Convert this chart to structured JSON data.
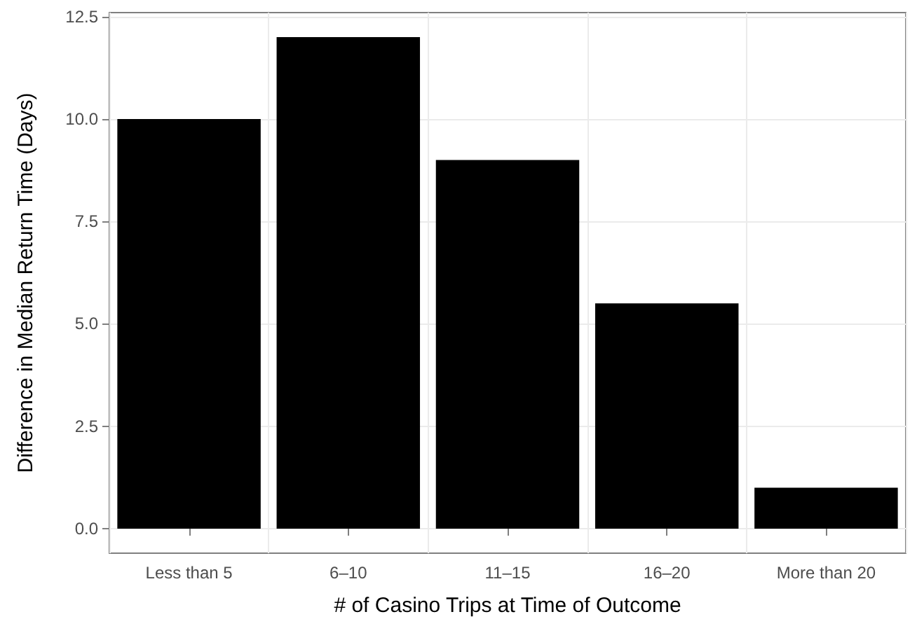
{
  "chart_data": {
    "type": "bar",
    "xlabel": "# of Casino Trips at Time of Outcome",
    "ylabel": "Difference in Median Return Time (Days)",
    "categories": [
      "Less than 5",
      "6–10",
      "11–15",
      "16–20",
      "More than 20"
    ],
    "values": [
      10,
      12,
      9,
      5.5,
      1
    ],
    "color": "#000000",
    "ylim": [
      -0.6,
      12.6
    ],
    "yticks": [
      {
        "value": 0,
        "label": "0.0"
      },
      {
        "value": 2.5,
        "label": "2.5"
      },
      {
        "value": 5,
        "label": "5.0"
      },
      {
        "value": 7.5,
        "label": "7.5"
      },
      {
        "value": 10,
        "label": "10.0"
      },
      {
        "value": 12.5,
        "label": "12.5"
      }
    ],
    "grid": true
  }
}
